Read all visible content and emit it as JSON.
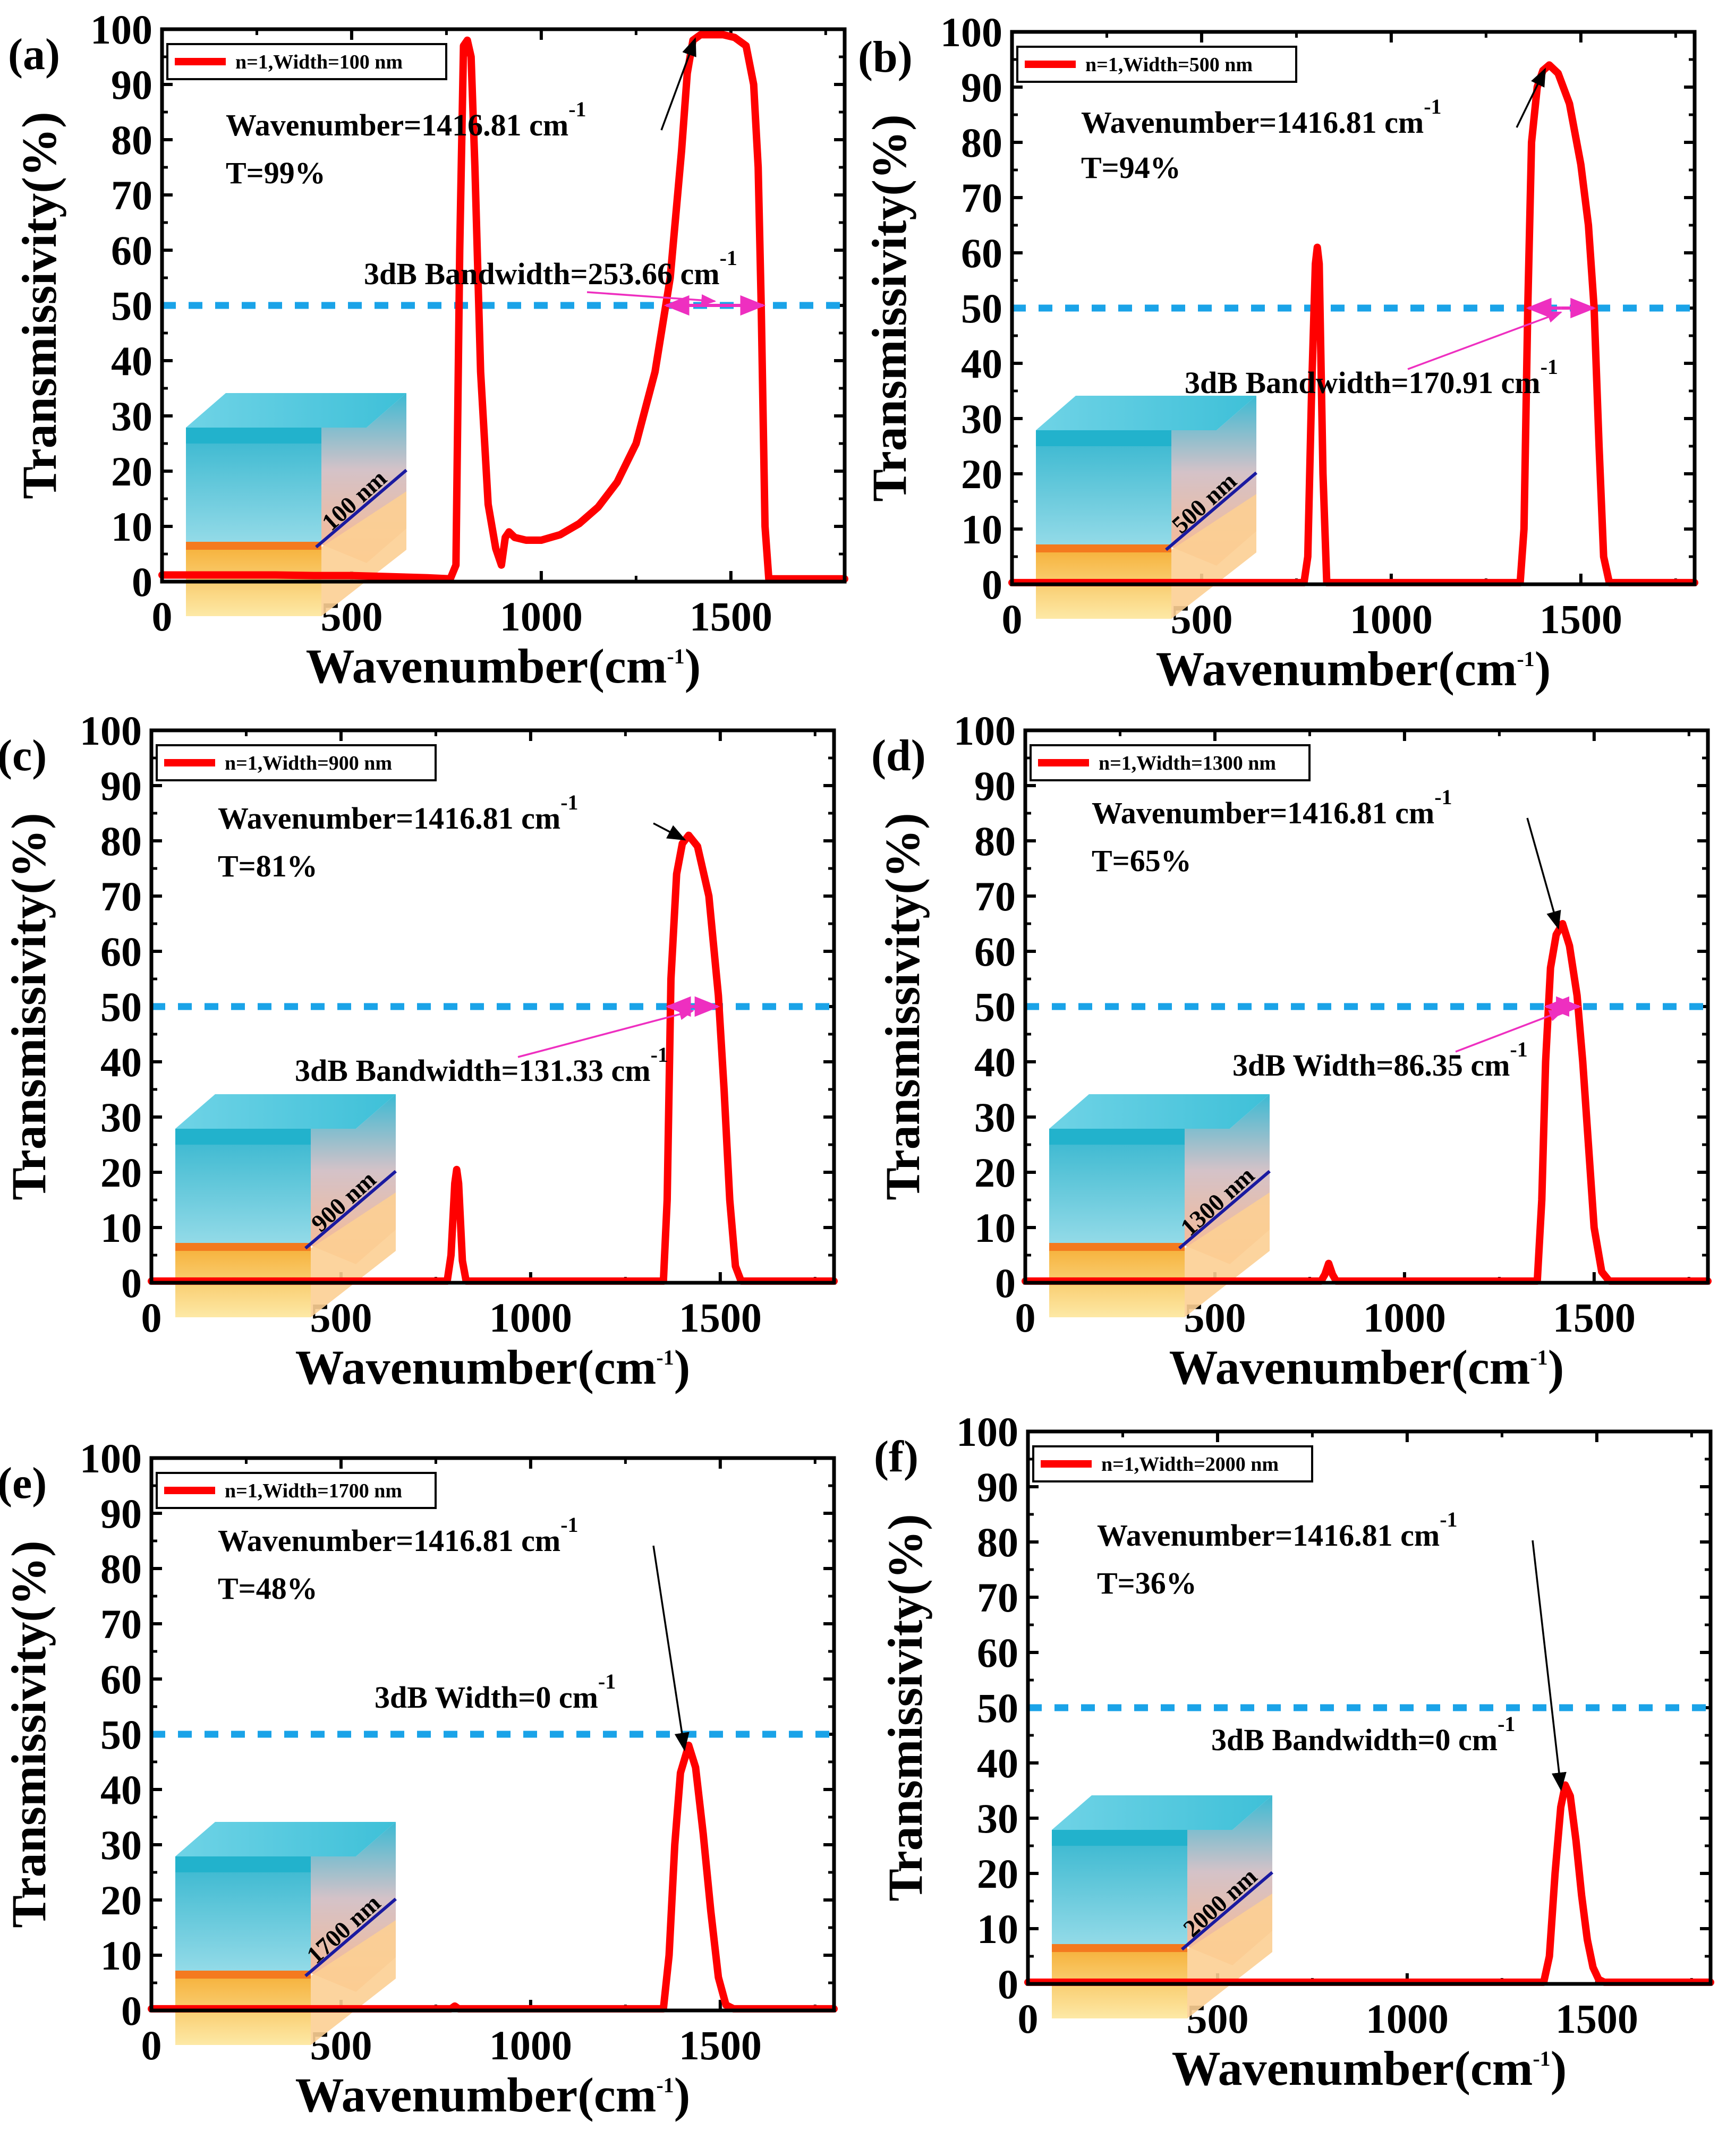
{
  "chart_data": [
    {
      "type": "line",
      "panel": "(a)",
      "legend": "n=1,Width=100 nm",
      "xlabel": "Wavenumber(cm",
      "xlabel_sup": "-1",
      "xlabel_end": ")",
      "ylabel": "Transmissivity(%)",
      "xlim": [
        0,
        1800
      ],
      "ylim": [
        0,
        100
      ],
      "xticks": [
        "0",
        "500",
        "1000",
        "1500"
      ],
      "yticks": [
        "0",
        "10",
        "20",
        "30",
        "40",
        "50",
        "60",
        "70",
        "80",
        "90",
        "100"
      ],
      "threshold": 50,
      "peak": {
        "x": 1416.81,
        "y": 99
      },
      "annotation_peak_text": "Wavenumber=1416.81 cm",
      "annotation_peak_sup": "-1",
      "annotation_T": "T=99%",
      "annotation_bw_text": "3dB Bandwidth=253.66 cm",
      "annotation_bw_sup": "-1",
      "bandwidth_range": [
        1330,
        1585
      ],
      "inset_label": "100 nm",
      "x": [
        0,
        100,
        200,
        300,
        400,
        500,
        600,
        700,
        760,
        775,
        785,
        795,
        805,
        815,
        825,
        840,
        860,
        880,
        895,
        905,
        915,
        930,
        960,
        1000,
        1050,
        1100,
        1150,
        1200,
        1250,
        1300,
        1340,
        1370,
        1385,
        1400,
        1420,
        1450,
        1480,
        1510,
        1540,
        1560,
        1572,
        1580,
        1590,
        1600,
        1700,
        1800
      ],
      "y": [
        1.2,
        1.2,
        1.2,
        1.2,
        1.1,
        1.1,
        0.9,
        0.7,
        0.5,
        3,
        60,
        97,
        98,
        95,
        75,
        38,
        14,
        6,
        3,
        8,
        9,
        8,
        7.5,
        7.5,
        8.5,
        10.5,
        13.5,
        18,
        25,
        38,
        55,
        78,
        92,
        98,
        99,
        99,
        99,
        98.5,
        97,
        90,
        75,
        50,
        10,
        0.5,
        0.5,
        0.5
      ]
    },
    {
      "type": "line",
      "panel": "(b)",
      "legend": "n=1,Width=500 nm",
      "xlabel": "Wavenumber(cm",
      "xlabel_sup": "-1",
      "xlabel_end": ")",
      "ylabel": "Transmissivity(%)",
      "xlim": [
        0,
        1800
      ],
      "ylim": [
        0,
        100
      ],
      "xticks": [
        "0",
        "500",
        "1000",
        "1500"
      ],
      "yticks": [
        "0",
        "10",
        "20",
        "30",
        "40",
        "50",
        "60",
        "70",
        "80",
        "90",
        "100"
      ],
      "threshold": 50,
      "peak": {
        "x": 1416.81,
        "y": 94
      },
      "annotation_peak_text": "Wavenumber=1416.81 cm",
      "annotation_peak_sup": "-1",
      "annotation_T": "T=94%",
      "annotation_bw_text": "3dB Bandwidth=170.91 cm",
      "annotation_bw_sup": "-1",
      "bandwidth_range": [
        1362,
        1533
      ],
      "inset_label": "500 nm",
      "x": [
        0,
        500,
        770,
        780,
        790,
        800,
        805,
        810,
        820,
        830,
        1000,
        1340,
        1350,
        1360,
        1370,
        1385,
        1400,
        1416.81,
        1440,
        1470,
        1500,
        1520,
        1535,
        1548,
        1560,
        1575,
        1800
      ],
      "y": [
        0.3,
        0.3,
        0.3,
        5,
        35,
        58,
        61,
        58,
        20,
        0.3,
        0.3,
        0.3,
        10,
        50,
        80,
        90,
        93,
        94,
        92.5,
        87,
        76,
        65,
        50,
        25,
        5,
        0.3,
        0.3
      ]
    },
    {
      "type": "line",
      "panel": "(c)",
      "legend": "n=1,Width=900 nm",
      "xlabel": "Wavenumber(cm",
      "xlabel_sup": "-1",
      "xlabel_end": ")",
      "ylabel": "Transmissivity(%)",
      "xlim": [
        0,
        1800
      ],
      "ylim": [
        0,
        100
      ],
      "xticks": [
        "0",
        "500",
        "1000",
        "1500"
      ],
      "yticks": [
        "0",
        "10",
        "20",
        "30",
        "40",
        "50",
        "60",
        "70",
        "80",
        "90",
        "100"
      ],
      "threshold": 50,
      "peak": {
        "x": 1416.81,
        "y": 81
      },
      "annotation_peak_text": "Wavenumber=1416.81 cm",
      "annotation_peak_sup": "-1",
      "annotation_T": "T=81%",
      "annotation_bw_text": "3dB Bandwidth=131.33 cm",
      "annotation_bw_sup": "-1",
      "bandwidth_range": [
        1362,
        1493
      ],
      "inset_label": "900 nm",
      "x": [
        0,
        500,
        780,
        790,
        800,
        805,
        810,
        820,
        830,
        1000,
        1350,
        1360,
        1370,
        1385,
        1400,
        1416.81,
        1440,
        1470,
        1495,
        1510,
        1525,
        1540,
        1555,
        1800
      ],
      "y": [
        0.3,
        0.3,
        0.3,
        5,
        18,
        20.5,
        18,
        4,
        0.3,
        0.3,
        0.3,
        15,
        55,
        74,
        79.5,
        81,
        79,
        70,
        52,
        35,
        15,
        3,
        0.3,
        0.3
      ]
    },
    {
      "type": "line",
      "panel": "(d)",
      "legend": "n=1,Width=1300 nm",
      "xlabel": "Wavenumber(cm",
      "xlabel_sup": "-1",
      "xlabel_end": ")",
      "ylabel": "Transmissivity(%)",
      "xlim": [
        0,
        1800
      ],
      "ylim": [
        0,
        100
      ],
      "xticks": [
        "0",
        "500",
        "1000",
        "1500"
      ],
      "yticks": [
        "0",
        "10",
        "20",
        "30",
        "40",
        "50",
        "60",
        "70",
        "80",
        "90",
        "100"
      ],
      "threshold": 50,
      "peak": {
        "x": 1416.81,
        "y": 65
      },
      "annotation_peak_text": "Wavenumber=1416.81 cm",
      "annotation_peak_sup": "-1",
      "annotation_T": "T=65%",
      "annotation_bw_text": "3dB Width=86.35 cm",
      "annotation_bw_sup": "-1",
      "bandwidth_range": [
        1374,
        1460
      ],
      "inset_label": "1300 nm",
      "x": [
        0,
        500,
        780,
        790,
        800,
        810,
        820,
        1000,
        1350,
        1362,
        1372,
        1385,
        1400,
        1416.81,
        1435,
        1455,
        1470,
        1485,
        1500,
        1520,
        1540,
        1800
      ],
      "y": [
        0.3,
        0.3,
        0.3,
        1.5,
        3.5,
        1.5,
        0.3,
        0.3,
        0.3,
        15,
        40,
        57,
        63,
        65,
        61,
        52,
        40,
        25,
        10,
        2,
        0.3,
        0.3
      ]
    },
    {
      "type": "line",
      "panel": "(e)",
      "legend": "n=1,Width=1700 nm",
      "xlabel": "Wavenumber(cm",
      "xlabel_sup": "-1",
      "xlabel_end": ")",
      "ylabel": "Transmissivity(%)",
      "xlim": [
        0,
        1800
      ],
      "ylim": [
        0,
        100
      ],
      "xticks": [
        "0",
        "500",
        "1000",
        "1500"
      ],
      "yticks": [
        "0",
        "10",
        "20",
        "30",
        "40",
        "50",
        "60",
        "70",
        "80",
        "90",
        "100"
      ],
      "threshold": 50,
      "peak": {
        "x": 1416.81,
        "y": 48
      },
      "annotation_peak_text": "Wavenumber=1416.81 cm",
      "annotation_peak_sup": "-1",
      "annotation_T": "T=48%",
      "annotation_bw_text": "3dB Width=0 cm",
      "annotation_bw_sup": "-1",
      "bandwidth_range": null,
      "inset_label": "1700 nm",
      "x": [
        0,
        500,
        790,
        800,
        810,
        1000,
        1350,
        1365,
        1380,
        1395,
        1416.81,
        1435,
        1455,
        1475,
        1495,
        1515,
        1535,
        1800
      ],
      "y": [
        0.3,
        0.3,
        0.3,
        0.8,
        0.3,
        0.3,
        0.3,
        10,
        30,
        43,
        48,
        44,
        32,
        18,
        6,
        1,
        0.3,
        0.3
      ]
    },
    {
      "type": "line",
      "panel": "(f)",
      "legend": "n=1,Width=2000 nm",
      "xlabel": "Wavenumber(cm",
      "xlabel_sup": "-1",
      "xlabel_end": ")",
      "ylabel": "Transmissivity(%)",
      "xlim": [
        0,
        1800
      ],
      "ylim": [
        0,
        100
      ],
      "xticks": [
        "0",
        "500",
        "1000",
        "1500"
      ],
      "yticks": [
        "0",
        "10",
        "20",
        "30",
        "40",
        "50",
        "60",
        "70",
        "80",
        "90",
        "100"
      ],
      "threshold": 50,
      "peak": {
        "x": 1416.81,
        "y": 36
      },
      "annotation_peak_text": "Wavenumber=1416.81 cm",
      "annotation_peak_sup": "-1",
      "annotation_T": "T=36%",
      "annotation_bw_text": "3dB Bandwidth=0 cm",
      "annotation_bw_sup": "-1",
      "bandwidth_range": null,
      "inset_label": "2000 nm",
      "x": [
        0,
        1000,
        1360,
        1375,
        1390,
        1405,
        1416.81,
        1430,
        1445,
        1460,
        1475,
        1490,
        1505,
        1520,
        1800
      ],
      "y": [
        0.3,
        0.3,
        0.3,
        5,
        20,
        32,
        36,
        34,
        26,
        16,
        8,
        3,
        0.8,
        0.3,
        0.3
      ]
    }
  ]
}
